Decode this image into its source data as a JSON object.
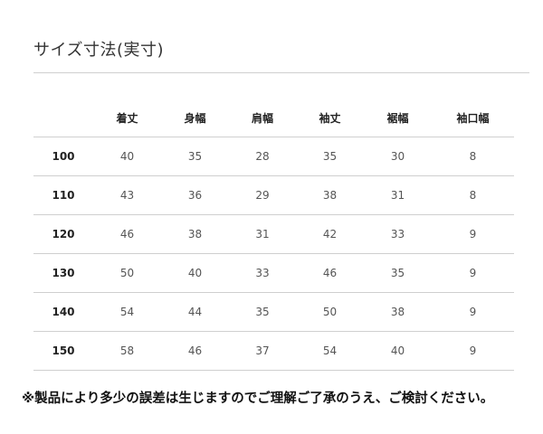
{
  "title": "サイズ寸法(実寸)",
  "table": {
    "headers": [
      "",
      "着丈",
      "身幅",
      "肩幅",
      "袖丈",
      "裾幅",
      "袖口幅"
    ],
    "rows": [
      [
        "100",
        "40",
        "35",
        "28",
        "35",
        "30",
        "8"
      ],
      [
        "110",
        "43",
        "36",
        "29",
        "38",
        "31",
        "8"
      ],
      [
        "120",
        "46",
        "38",
        "31",
        "42",
        "33",
        "9"
      ],
      [
        "130",
        "50",
        "40",
        "33",
        "46",
        "35",
        "9"
      ],
      [
        "140",
        "54",
        "44",
        "35",
        "50",
        "38",
        "9"
      ],
      [
        "150",
        "58",
        "46",
        "37",
        "54",
        "40",
        "9"
      ]
    ]
  },
  "note": "※製品により多少の誤差は生じますのでご理解ご了承のうえ、ご検討ください。"
}
